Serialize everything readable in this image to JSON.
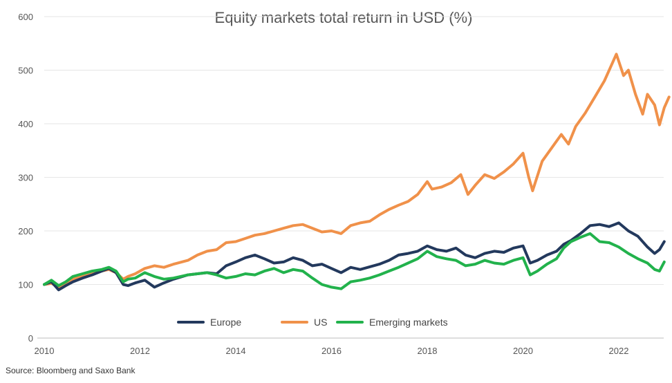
{
  "chart_data": {
    "type": "line",
    "title": "Equity markets total return in USD (%)",
    "xlabel": "",
    "ylabel": "",
    "xlim": [
      2010,
      2023.1
    ],
    "ylim": [
      0,
      600
    ],
    "x_ticks": [
      "2010",
      "2012",
      "2014",
      "2016",
      "2018",
      "2020",
      "2022"
    ],
    "y_ticks": [
      "0",
      "100",
      "200",
      "300",
      "400",
      "500",
      "600"
    ],
    "grid": "horizontal",
    "legend_position": "bottom-center",
    "source": "Source: Bloomberg and Saxo Bank",
    "series": [
      {
        "name": "Europe",
        "color": "#23395d",
        "points": [
          [
            2010.0,
            100
          ],
          [
            2010.15,
            105
          ],
          [
            2010.3,
            90
          ],
          [
            2010.45,
            98
          ],
          [
            2010.6,
            105
          ],
          [
            2010.8,
            112
          ],
          [
            2011.0,
            118
          ],
          [
            2011.2,
            125
          ],
          [
            2011.35,
            130
          ],
          [
            2011.5,
            122
          ],
          [
            2011.65,
            100
          ],
          [
            2011.75,
            98
          ],
          [
            2011.9,
            103
          ],
          [
            2012.1,
            108
          ],
          [
            2012.3,
            95
          ],
          [
            2012.5,
            103
          ],
          [
            2012.7,
            110
          ],
          [
            2013.0,
            118
          ],
          [
            2013.2,
            120
          ],
          [
            2013.4,
            122
          ],
          [
            2013.6,
            120
          ],
          [
            2013.8,
            135
          ],
          [
            2014.0,
            142
          ],
          [
            2014.2,
            150
          ],
          [
            2014.4,
            155
          ],
          [
            2014.6,
            148
          ],
          [
            2014.8,
            140
          ],
          [
            2015.0,
            142
          ],
          [
            2015.2,
            150
          ],
          [
            2015.4,
            145
          ],
          [
            2015.6,
            135
          ],
          [
            2015.8,
            138
          ],
          [
            2016.0,
            130
          ],
          [
            2016.2,
            122
          ],
          [
            2016.4,
            132
          ],
          [
            2016.6,
            128
          ],
          [
            2016.8,
            133
          ],
          [
            2017.0,
            138
          ],
          [
            2017.2,
            145
          ],
          [
            2017.4,
            155
          ],
          [
            2017.6,
            158
          ],
          [
            2017.8,
            162
          ],
          [
            2018.0,
            172
          ],
          [
            2018.2,
            165
          ],
          [
            2018.4,
            162
          ],
          [
            2018.6,
            168
          ],
          [
            2018.8,
            155
          ],
          [
            2019.0,
            150
          ],
          [
            2019.2,
            158
          ],
          [
            2019.4,
            162
          ],
          [
            2019.6,
            160
          ],
          [
            2019.8,
            168
          ],
          [
            2020.0,
            172
          ],
          [
            2020.15,
            140
          ],
          [
            2020.3,
            145
          ],
          [
            2020.5,
            155
          ],
          [
            2020.7,
            162
          ],
          [
            2020.85,
            175
          ],
          [
            2021.0,
            182
          ],
          [
            2021.2,
            195
          ],
          [
            2021.4,
            210
          ],
          [
            2021.6,
            212
          ],
          [
            2021.8,
            208
          ],
          [
            2022.0,
            215
          ],
          [
            2022.2,
            200
          ],
          [
            2022.4,
            190
          ],
          [
            2022.6,
            170
          ],
          [
            2022.75,
            158
          ],
          [
            2022.85,
            165
          ],
          [
            2022.95,
            180
          ]
        ]
      },
      {
        "name": "US",
        "color": "#f0914a",
        "points": [
          [
            2010.0,
            100
          ],
          [
            2010.15,
            102
          ],
          [
            2010.3,
            95
          ],
          [
            2010.45,
            103
          ],
          [
            2010.6,
            110
          ],
          [
            2010.8,
            115
          ],
          [
            2011.0,
            120
          ],
          [
            2011.2,
            125
          ],
          [
            2011.35,
            128
          ],
          [
            2011.5,
            122
          ],
          [
            2011.65,
            110
          ],
          [
            2011.75,
            115
          ],
          [
            2011.9,
            120
          ],
          [
            2012.1,
            130
          ],
          [
            2012.3,
            135
          ],
          [
            2012.5,
            132
          ],
          [
            2012.7,
            138
          ],
          [
            2013.0,
            145
          ],
          [
            2013.2,
            155
          ],
          [
            2013.4,
            162
          ],
          [
            2013.6,
            165
          ],
          [
            2013.8,
            178
          ],
          [
            2014.0,
            180
          ],
          [
            2014.2,
            186
          ],
          [
            2014.4,
            192
          ],
          [
            2014.6,
            195
          ],
          [
            2014.8,
            200
          ],
          [
            2015.0,
            205
          ],
          [
            2015.2,
            210
          ],
          [
            2015.4,
            212
          ],
          [
            2015.6,
            205
          ],
          [
            2015.8,
            198
          ],
          [
            2016.0,
            200
          ],
          [
            2016.2,
            195
          ],
          [
            2016.4,
            210
          ],
          [
            2016.6,
            215
          ],
          [
            2016.8,
            218
          ],
          [
            2017.0,
            230
          ],
          [
            2017.2,
            240
          ],
          [
            2017.4,
            248
          ],
          [
            2017.6,
            255
          ],
          [
            2017.8,
            268
          ],
          [
            2018.0,
            292
          ],
          [
            2018.1,
            278
          ],
          [
            2018.3,
            282
          ],
          [
            2018.5,
            290
          ],
          [
            2018.7,
            305
          ],
          [
            2018.85,
            268
          ],
          [
            2019.0,
            285
          ],
          [
            2019.2,
            305
          ],
          [
            2019.4,
            298
          ],
          [
            2019.6,
            310
          ],
          [
            2019.8,
            325
          ],
          [
            2020.0,
            345
          ],
          [
            2020.12,
            300
          ],
          [
            2020.2,
            275
          ],
          [
            2020.4,
            330
          ],
          [
            2020.6,
            355
          ],
          [
            2020.8,
            380
          ],
          [
            2020.95,
            362
          ],
          [
            2021.1,
            395
          ],
          [
            2021.3,
            420
          ],
          [
            2021.5,
            450
          ],
          [
            2021.7,
            480
          ],
          [
            2021.85,
            510
          ],
          [
            2021.95,
            530
          ],
          [
            2022.1,
            490
          ],
          [
            2022.2,
            500
          ],
          [
            2022.35,
            455
          ],
          [
            2022.5,
            418
          ],
          [
            2022.6,
            455
          ],
          [
            2022.75,
            435
          ],
          [
            2022.85,
            398
          ],
          [
            2022.95,
            430
          ],
          [
            2023.05,
            450
          ]
        ]
      },
      {
        "name": "Emerging markets",
        "color": "#22b24c",
        "points": [
          [
            2010.0,
            100
          ],
          [
            2010.15,
            108
          ],
          [
            2010.3,
            98
          ],
          [
            2010.45,
            105
          ],
          [
            2010.6,
            115
          ],
          [
            2010.8,
            120
          ],
          [
            2011.0,
            125
          ],
          [
            2011.2,
            128
          ],
          [
            2011.35,
            132
          ],
          [
            2011.5,
            125
          ],
          [
            2011.65,
            105
          ],
          [
            2011.75,
            110
          ],
          [
            2011.9,
            112
          ],
          [
            2012.1,
            122
          ],
          [
            2012.3,
            115
          ],
          [
            2012.5,
            110
          ],
          [
            2012.7,
            112
          ],
          [
            2013.0,
            118
          ],
          [
            2013.2,
            120
          ],
          [
            2013.4,
            122
          ],
          [
            2013.6,
            118
          ],
          [
            2013.8,
            112
          ],
          [
            2014.0,
            115
          ],
          [
            2014.2,
            120
          ],
          [
            2014.4,
            118
          ],
          [
            2014.6,
            125
          ],
          [
            2014.8,
            130
          ],
          [
            2015.0,
            122
          ],
          [
            2015.2,
            128
          ],
          [
            2015.4,
            125
          ],
          [
            2015.6,
            112
          ],
          [
            2015.8,
            100
          ],
          [
            2016.0,
            95
          ],
          [
            2016.2,
            92
          ],
          [
            2016.4,
            105
          ],
          [
            2016.6,
            108
          ],
          [
            2016.8,
            112
          ],
          [
            2017.0,
            118
          ],
          [
            2017.2,
            125
          ],
          [
            2017.4,
            132
          ],
          [
            2017.6,
            140
          ],
          [
            2017.8,
            148
          ],
          [
            2018.0,
            162
          ],
          [
            2018.2,
            152
          ],
          [
            2018.4,
            148
          ],
          [
            2018.6,
            145
          ],
          [
            2018.8,
            135
          ],
          [
            2019.0,
            138
          ],
          [
            2019.2,
            145
          ],
          [
            2019.4,
            140
          ],
          [
            2019.6,
            138
          ],
          [
            2019.8,
            145
          ],
          [
            2020.0,
            150
          ],
          [
            2020.15,
            118
          ],
          [
            2020.3,
            125
          ],
          [
            2020.5,
            138
          ],
          [
            2020.7,
            148
          ],
          [
            2020.85,
            168
          ],
          [
            2021.0,
            180
          ],
          [
            2021.2,
            188
          ],
          [
            2021.4,
            195
          ],
          [
            2021.6,
            180
          ],
          [
            2021.8,
            178
          ],
          [
            2022.0,
            170
          ],
          [
            2022.2,
            158
          ],
          [
            2022.4,
            148
          ],
          [
            2022.6,
            140
          ],
          [
            2022.75,
            128
          ],
          [
            2022.85,
            125
          ],
          [
            2022.95,
            142
          ]
        ]
      }
    ]
  }
}
